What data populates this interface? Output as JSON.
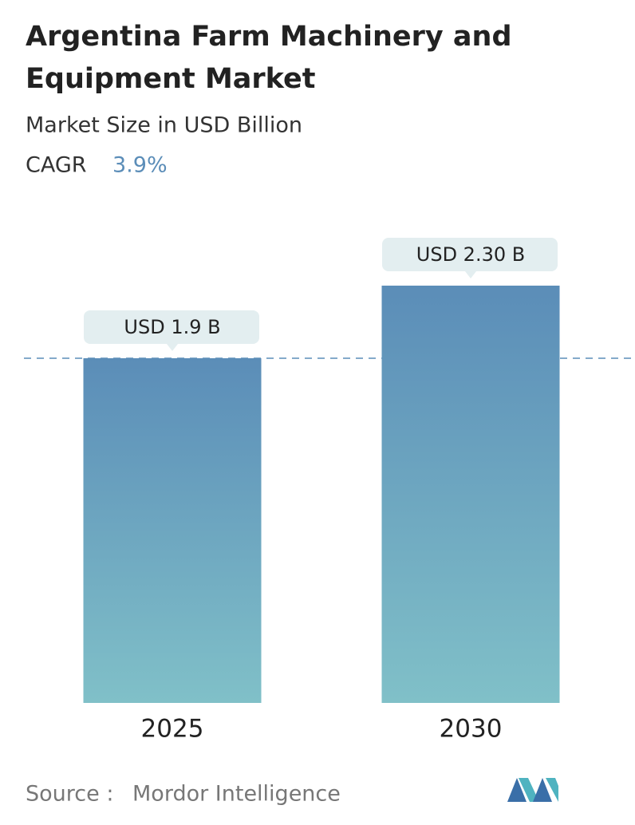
{
  "chart_data": {
    "type": "bar",
    "title_lines": [
      "Argentina Farm Machinery and",
      "Equipment Market"
    ],
    "subtitle": "Market Size in USD Billion",
    "cagr_label": "CAGR",
    "cagr_value": "3.9%",
    "categories": [
      "2025",
      "2030"
    ],
    "values": [
      1.9,
      2.3
    ],
    "value_labels": [
      "USD 1.9 B",
      "USD 2.30 B"
    ],
    "color_top": "#5b8db8",
    "color_bottom": "#80c0c8",
    "source_label": "Source :",
    "source": "Mordor Intelligence"
  }
}
